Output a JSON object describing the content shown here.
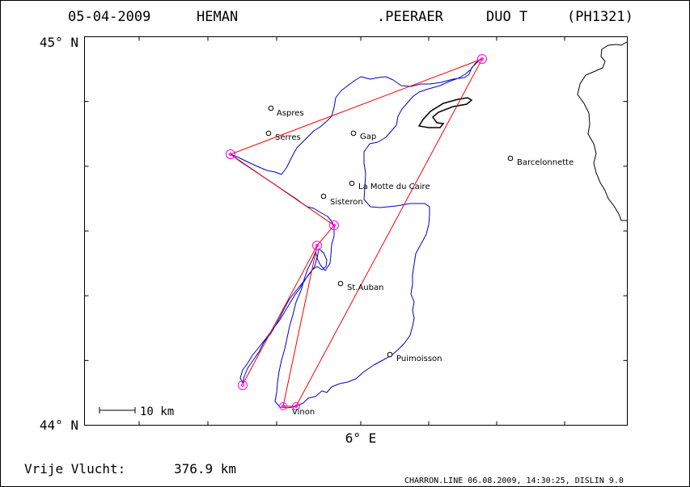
{
  "header": {
    "date": "05-04-2009",
    "pilot": "HEMAN",
    "copilot": ".PEERAER",
    "glider": "DUO T",
    "registration": "(PH1321)"
  },
  "axes": {
    "lat_top_label": "45° N",
    "lat_bottom_label": "44° N",
    "lon_center_label": "6° E"
  },
  "scale_bar": {
    "label": "10 km"
  },
  "places": [
    {
      "name": "Aspres"
    },
    {
      "name": "Serres"
    },
    {
      "name": "Gap"
    },
    {
      "name": "Barcelonnette"
    },
    {
      "name": "La Motte du Caire"
    },
    {
      "name": "Sisteron"
    },
    {
      "name": "St.Auban"
    },
    {
      "name": "Puimoisson"
    },
    {
      "name": "Vinon"
    }
  ],
  "footer": {
    "flight_label": "Vrije Vlucht:",
    "distance": "376.9 km",
    "software": "CHARRON.LINE 06.08.2009, 14:30:25, DISLIN 9.0"
  },
  "colors": {
    "track": "#0000cc",
    "task": "#ff0000",
    "turnpoint": "#ff00ff",
    "frame": "#000000"
  }
}
